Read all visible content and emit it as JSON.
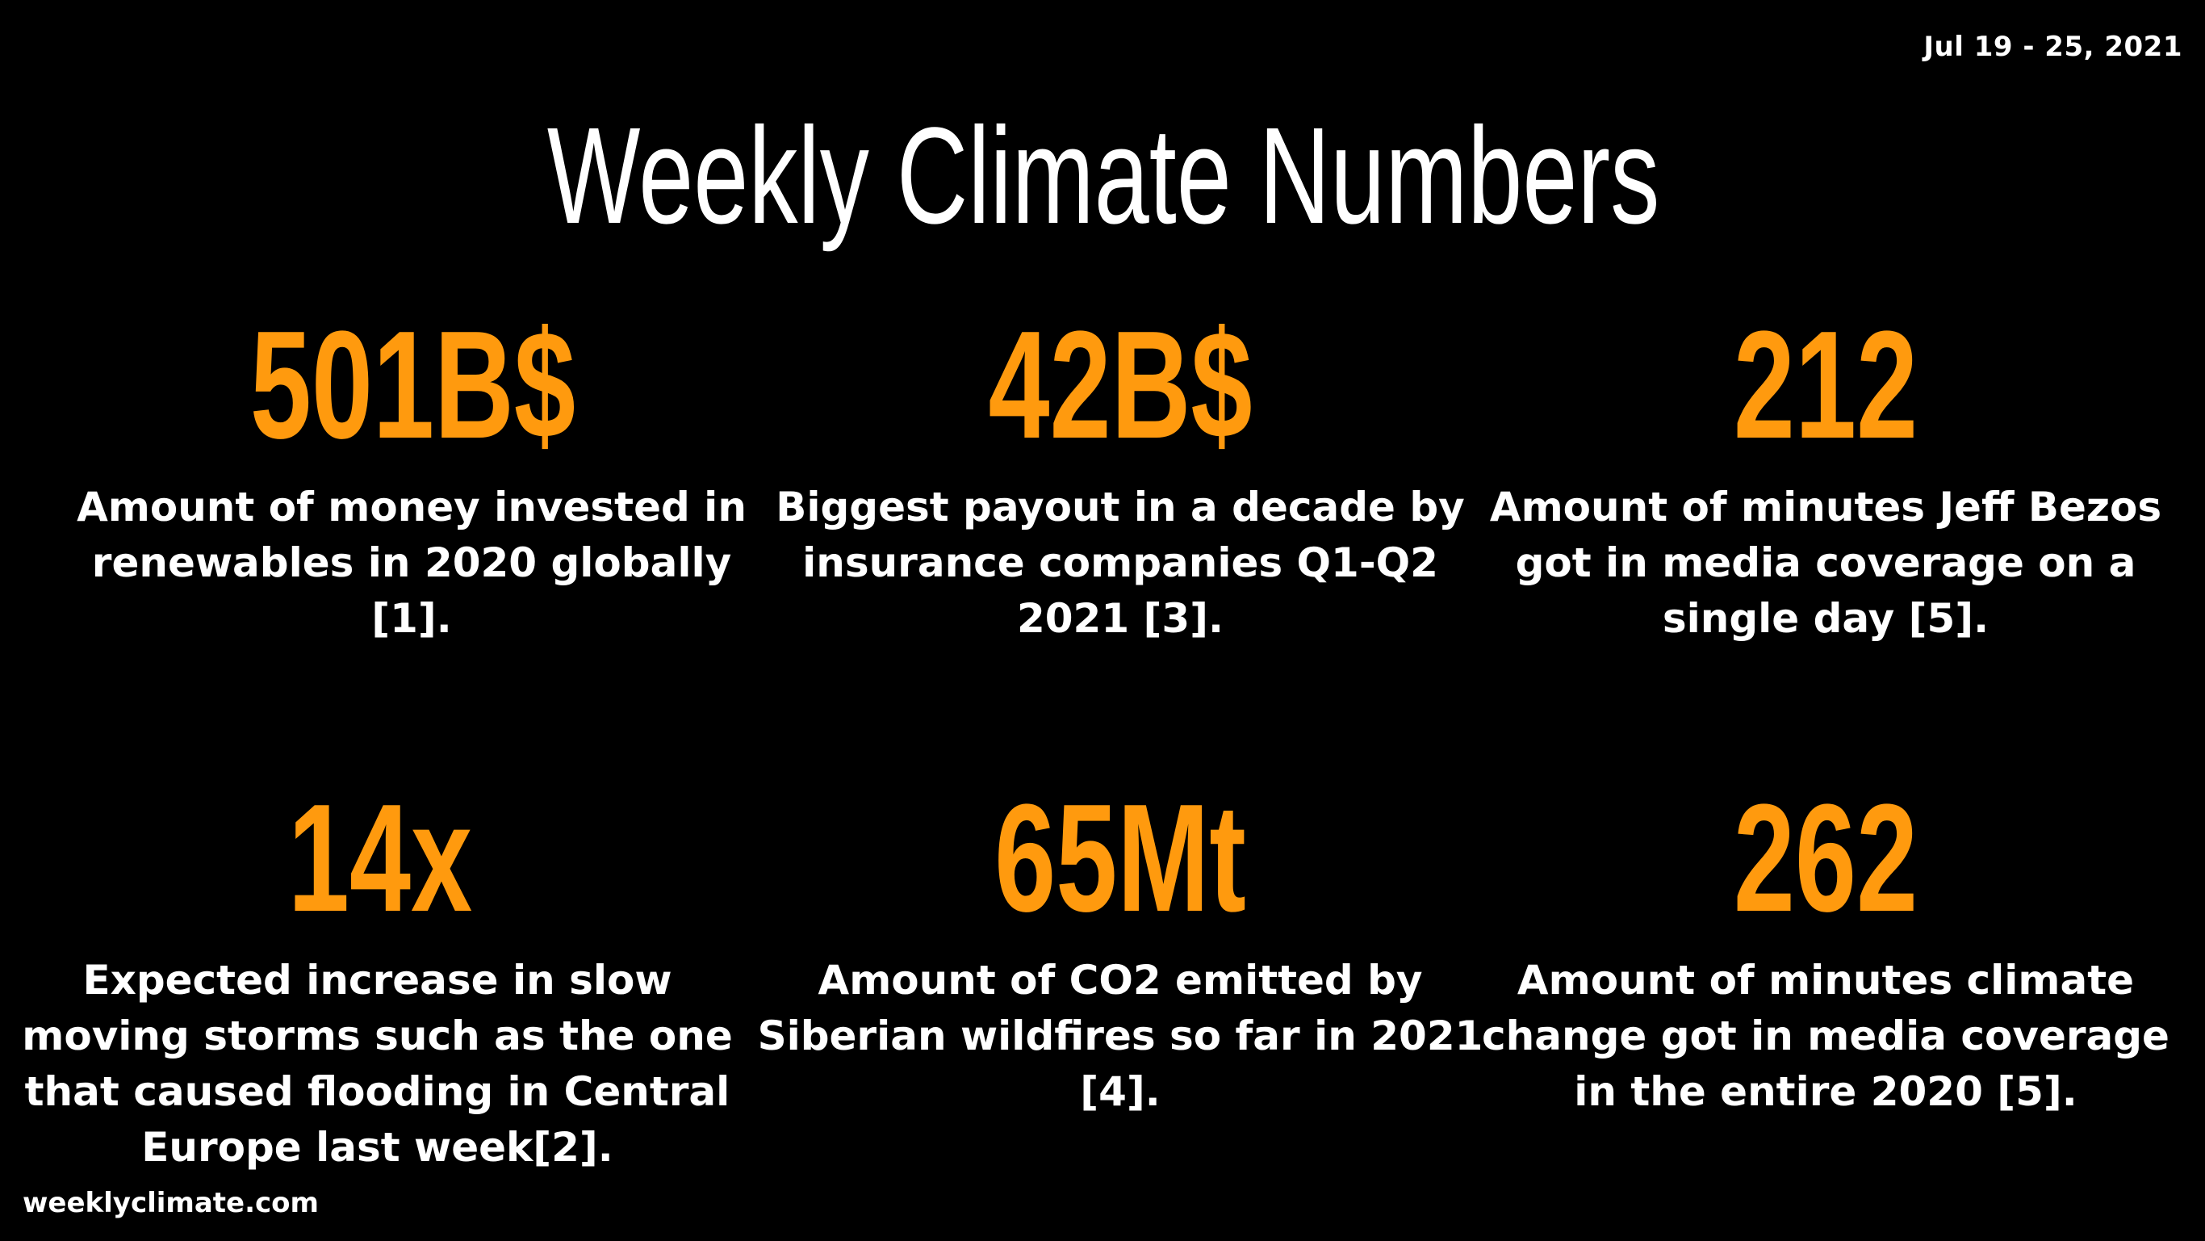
{
  "header": {
    "date_range": "Jul 19 - 25, 2021",
    "title": "Weekly Climate Numbers"
  },
  "colors": {
    "background": "#000000",
    "accent": "#ff9a0e",
    "text": "#ffffff"
  },
  "stats": [
    {
      "value": "501B$",
      "description": "Amount of money invested in renewables in 2020 globally [1]."
    },
    {
      "value": "42B$",
      "description": "Biggest payout in a decade by insurance companies Q1-Q2 2021 [3]."
    },
    {
      "value": "212",
      "description": "Amount of minutes Jeff Bezos got in media coverage on a single day [5]."
    },
    {
      "value": "14x",
      "description": "Expected increase in slow moving storms such as the one that caused flooding in Central Europe last week[2]."
    },
    {
      "value": "65Mt",
      "description": "Amount of CO2 emitted by Siberian wildfires so far in 2021 [4]."
    },
    {
      "value": "262",
      "description": "Amount of minutes climate change got in media coverage in the entire 2020 [5]."
    }
  ],
  "footer": {
    "site": "weeklyclimate.com"
  }
}
